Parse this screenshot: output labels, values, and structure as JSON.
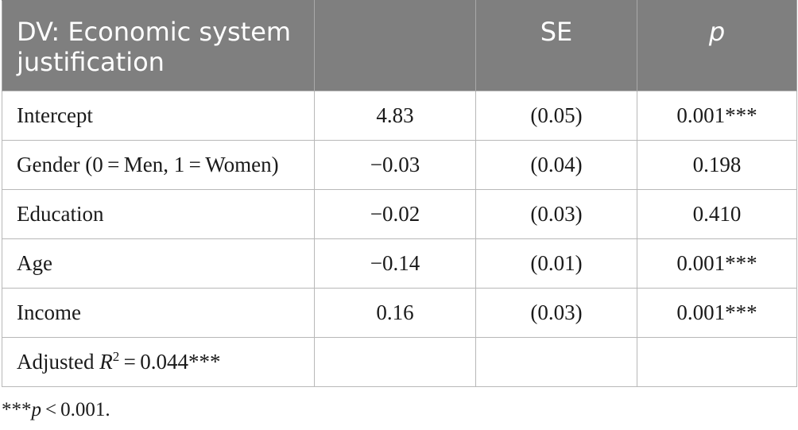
{
  "table": {
    "headers": {
      "dv": "DV: Economic system justification",
      "coef": "",
      "se": "SE",
      "p": "p"
    },
    "rows": [
      {
        "label": "Intercept",
        "coef": "4.83",
        "se": "(0.05)",
        "p": "0.001***"
      },
      {
        "label": "Gender (0 = Men, 1 = Women)",
        "coef": "−0.03",
        "se": "(0.04)",
        "p": "0.198"
      },
      {
        "label": "Education",
        "coef": "−0.02",
        "se": "(0.03)",
        "p": "0.410"
      },
      {
        "label": "Age",
        "coef": "−0.14",
        "se": "(0.01)",
        "p": "0.001***"
      },
      {
        "label": "Income",
        "coef": "0.16",
        "se": "(0.03)",
        "p": "0.001***"
      }
    ],
    "fit": {
      "prefix": "Adjusted ",
      "var": "R",
      "sup": "2",
      "suffix": " = 0.044***"
    }
  },
  "footnote": {
    "stars": "***",
    "var": "p",
    "rest": " < 0.001."
  },
  "colors": {
    "header_bg": "#7f7f7f",
    "header_text": "#ffffff",
    "border": "#b8b8b8"
  }
}
